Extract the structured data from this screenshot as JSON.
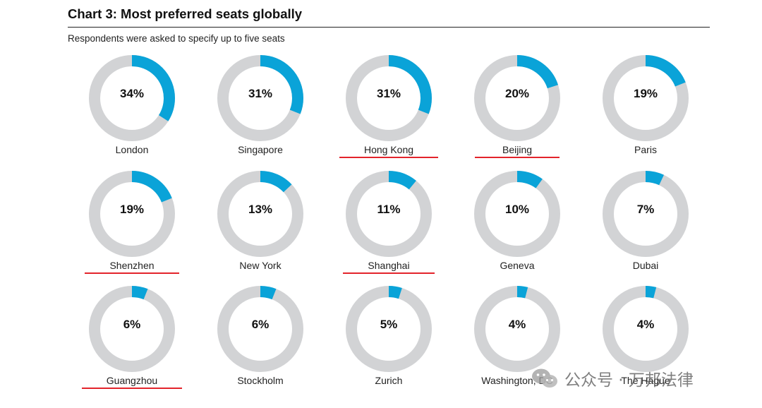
{
  "chart_data": {
    "type": "donut-grid",
    "title": "Chart 3: Most preferred seats globally",
    "subtitle": "Respondents were asked to specify up to five seats",
    "colors": {
      "filled": "#0aa3d8",
      "track": "#d2d3d5",
      "underline": "#e3242b"
    },
    "items": [
      {
        "city": "London",
        "value": 34,
        "label": "34%",
        "underlined": false
      },
      {
        "city": "Singapore",
        "value": 31,
        "label": "31%",
        "underlined": false
      },
      {
        "city": "Hong Kong",
        "value": 31,
        "label": "31%",
        "underlined": true
      },
      {
        "city": "Beijing",
        "value": 20,
        "label": "20%",
        "underlined": true
      },
      {
        "city": "Paris",
        "value": 19,
        "label": "19%",
        "underlined": false
      },
      {
        "city": "Shenzhen",
        "value": 19,
        "label": "19%",
        "underlined": true
      },
      {
        "city": "New York",
        "value": 13,
        "label": "13%",
        "underlined": false
      },
      {
        "city": "Shanghai",
        "value": 11,
        "label": "11%",
        "underlined": true
      },
      {
        "city": "Geneva",
        "value": 10,
        "label": "10%",
        "underlined": false
      },
      {
        "city": "Dubai",
        "value": 7,
        "label": "7%",
        "underlined": false
      },
      {
        "city": "Guangzhou",
        "value": 6,
        "label": "6%",
        "underlined": true
      },
      {
        "city": "Stockholm",
        "value": 6,
        "label": "6%",
        "underlined": false
      },
      {
        "city": "Zurich",
        "value": 5,
        "label": "5%",
        "underlined": false
      },
      {
        "city": "Washington, DC",
        "value": 4,
        "label": "4%",
        "underlined": false
      },
      {
        "city": "The Hague",
        "value": 4,
        "label": "4%",
        "underlined": false
      }
    ]
  },
  "watermark": {
    "text": "公众号 · 万邦法律",
    "icon": "wechat-icon"
  }
}
